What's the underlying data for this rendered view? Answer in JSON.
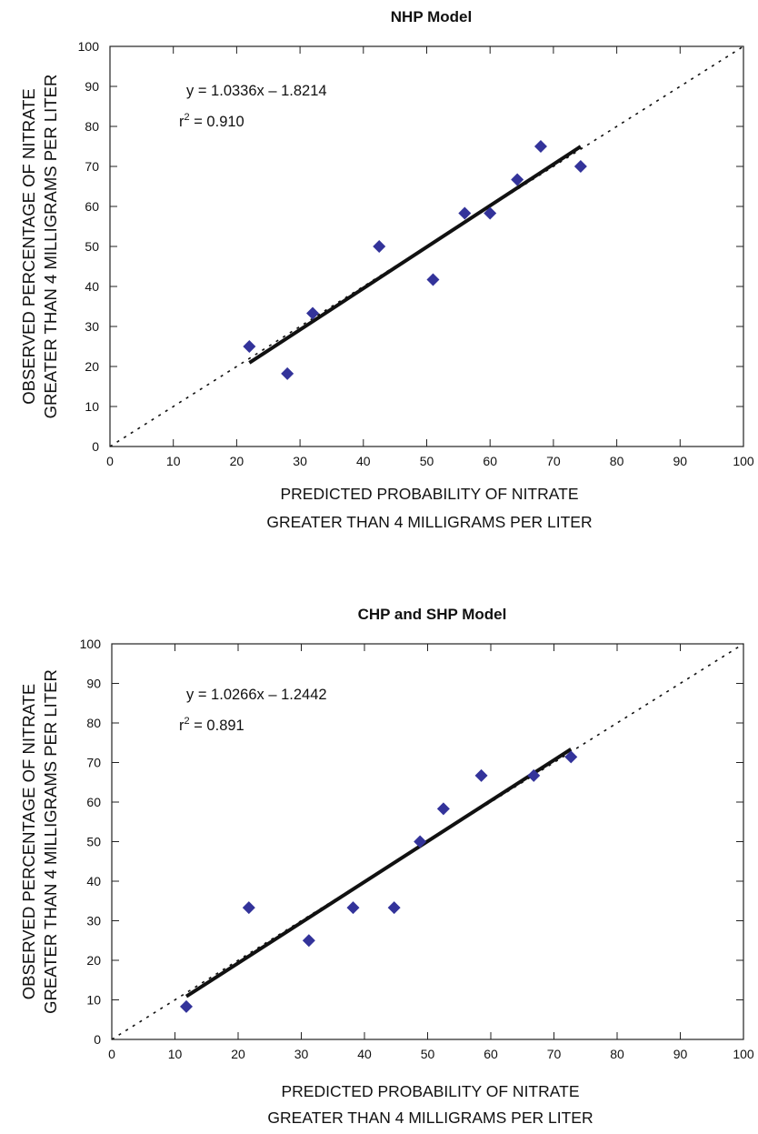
{
  "chart_data": [
    {
      "type": "scatter",
      "title": "NHP Model",
      "xlabel": [
        "PREDICTED PROBABILITY OF NITRATE",
        "GREATER THAN 4 MILLIGRAMS PER LITER"
      ],
      "ylabel": [
        "OBSERVED PERCENTAGE OF NITRATE",
        "GREATER THAN 4 MILLIGRAMS PER LITER"
      ],
      "xlim": [
        0,
        100
      ],
      "ylim": [
        0,
        100
      ],
      "xticks": [
        0,
        10,
        20,
        30,
        40,
        50,
        60,
        70,
        80,
        90,
        100
      ],
      "yticks": [
        0,
        10,
        20,
        30,
        40,
        50,
        60,
        70,
        80,
        90,
        100
      ],
      "grid": false,
      "marker_color": "#33339a",
      "points": [
        {
          "x": 22,
          "y": 25
        },
        {
          "x": 28,
          "y": 18.2
        },
        {
          "x": 32,
          "y": 33.3
        },
        {
          "x": 42.5,
          "y": 50
        },
        {
          "x": 51,
          "y": 41.7
        },
        {
          "x": 56,
          "y": 58.3
        },
        {
          "x": 60,
          "y": 58.3
        },
        {
          "x": 64.3,
          "y": 66.7
        },
        {
          "x": 68,
          "y": 75
        },
        {
          "x": 74.3,
          "y": 70
        }
      ],
      "regression": {
        "slope": 1.0336,
        "intercept": -1.8214,
        "x_range": [
          22,
          74.3
        ]
      },
      "equation_text": "y = 1.0336x – 1.8214",
      "r2_prefix": "r",
      "r2_sup": "2",
      "r2_value": " = 0.910",
      "reference_line": "1:1 dotted"
    },
    {
      "type": "scatter",
      "title": "CHP and SHP Model",
      "xlabel": [
        "PREDICTED PROBABILITY OF NITRATE",
        "GREATER THAN 4 MILLIGRAMS PER LITER"
      ],
      "ylabel": [
        "OBSERVED PERCENTAGE OF NITRATE",
        "GREATER THAN 4 MILLIGRAMS PER LITER"
      ],
      "xlim": [
        0,
        100
      ],
      "ylim": [
        0,
        100
      ],
      "xticks": [
        0,
        10,
        20,
        30,
        40,
        50,
        60,
        70,
        80,
        90,
        100
      ],
      "yticks": [
        0,
        10,
        20,
        30,
        40,
        50,
        60,
        70,
        80,
        90,
        100
      ],
      "grid": false,
      "marker_color": "#33339a",
      "points": [
        {
          "x": 11.8,
          "y": 8.3
        },
        {
          "x": 21.7,
          "y": 33.3
        },
        {
          "x": 31.2,
          "y": 25
        },
        {
          "x": 38.2,
          "y": 33.3
        },
        {
          "x": 44.7,
          "y": 33.3
        },
        {
          "x": 48.8,
          "y": 50
        },
        {
          "x": 52.5,
          "y": 58.3
        },
        {
          "x": 58.5,
          "y": 66.7
        },
        {
          "x": 66.8,
          "y": 66.7
        },
        {
          "x": 72.7,
          "y": 71.4
        }
      ],
      "regression": {
        "slope": 1.0266,
        "intercept": -1.2442,
        "x_range": [
          11.8,
          72.7
        ]
      },
      "equation_text": "y = 1.0266x – 1.2442",
      "r2_prefix": "r",
      "r2_sup": "2",
      "r2_value": " = 0.891",
      "reference_line": "1:1 dotted"
    }
  ]
}
